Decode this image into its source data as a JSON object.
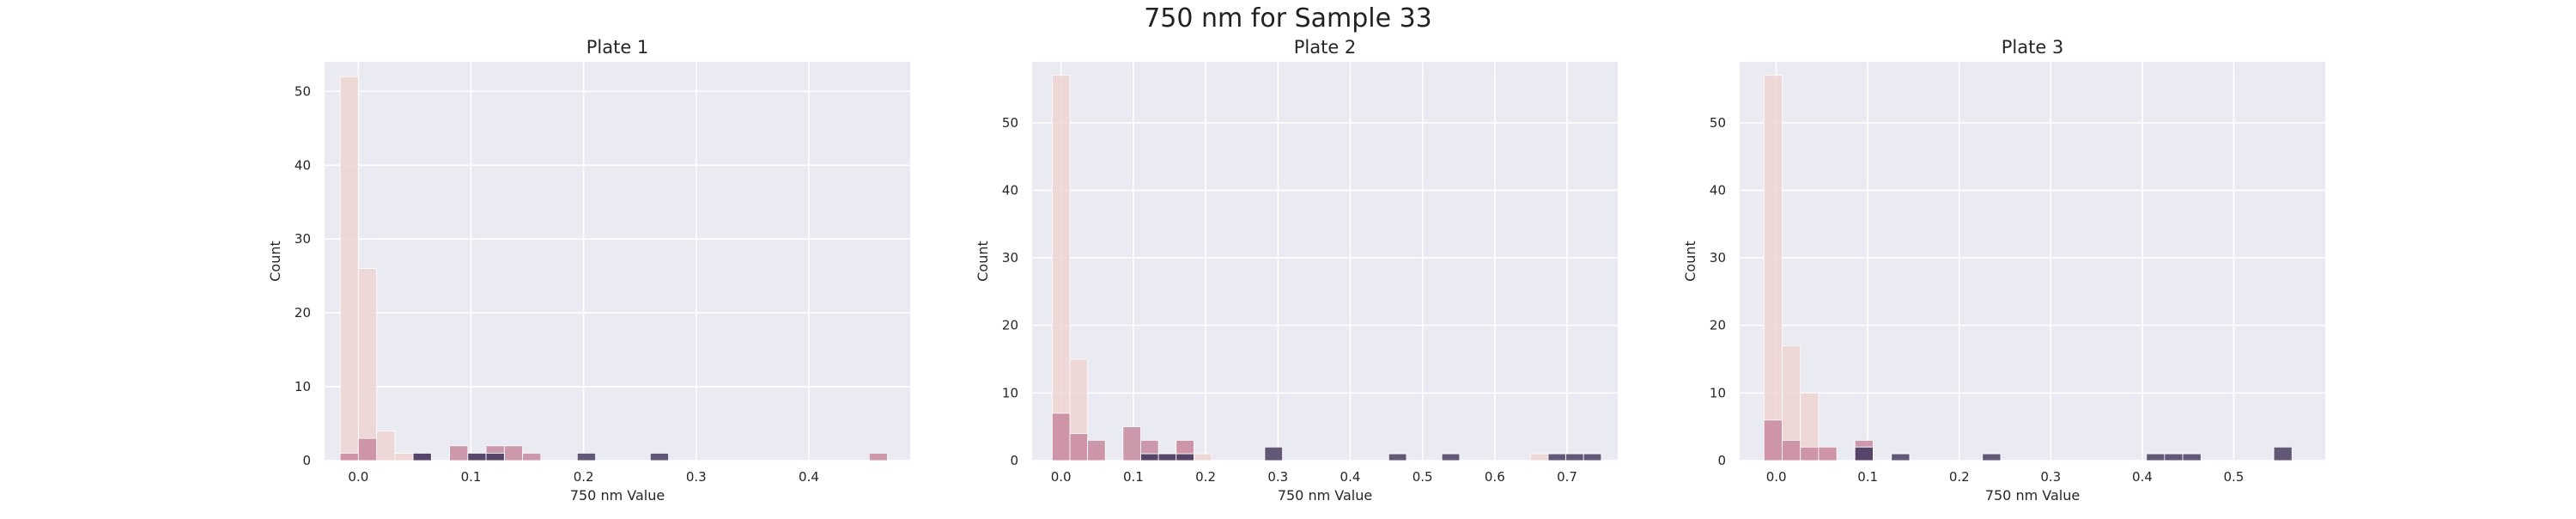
{
  "figure": {
    "title": "750 nm for Sample 33"
  },
  "colors": {
    "background": "#eaeaf2",
    "grid": "#ffffff",
    "palette": [
      "#eed3d2",
      "#c7899f",
      "#99648a",
      "#4b3d63"
    ]
  },
  "chart_data": [
    {
      "type": "bar",
      "title": "Plate 1",
      "xlabel": "750 nm Value",
      "ylabel": "Count",
      "xlim": [
        -0.03,
        0.49
      ],
      "ylim": [
        0,
        54
      ],
      "xticks": [
        0.0,
        0.1,
        0.2,
        0.3,
        0.4
      ],
      "xtick_labels": [
        "0.0",
        "0.1",
        "0.2",
        "0.3",
        "0.4"
      ],
      "yticks": [
        0,
        10,
        20,
        30,
        40,
        50
      ],
      "ytick_labels": [
        "0",
        "10",
        "20",
        "30",
        "40",
        "50"
      ],
      "bin_width": 0.0162,
      "grid": true,
      "series": [
        {
          "values": [
            [
              -0.0081,
              52
            ],
            [
              0.0081,
              26
            ],
            [
              0.0243,
              4
            ],
            [
              0.0405,
              1
            ],
            [
              0.0567,
              1
            ]
          ]
        },
        {
          "values": [
            [
              -0.0081,
              1
            ],
            [
              0.0081,
              3
            ],
            [
              0.0891,
              2
            ],
            [
              0.1215,
              2
            ],
            [
              0.1377,
              2
            ],
            [
              0.1539,
              1
            ],
            [
              0.4617,
              1
            ]
          ]
        },
        {
          "values": [
            [
              0.0567,
              1
            ],
            [
              0.1053,
              1
            ],
            [
              0.1215,
              1
            ]
          ]
        },
        {
          "values": [
            [
              0.0567,
              1
            ],
            [
              0.1053,
              1
            ],
            [
              0.1215,
              1
            ],
            [
              0.2025,
              1
            ],
            [
              0.2673,
              1
            ]
          ]
        }
      ]
    },
    {
      "type": "bar",
      "title": "Plate 2",
      "xlabel": "750 nm Value",
      "ylabel": "Count",
      "xlim": [
        -0.04,
        0.77
      ],
      "ylim": [
        0,
        59
      ],
      "xticks": [
        0.0,
        0.1,
        0.2,
        0.3,
        0.4,
        0.5,
        0.6,
        0.7
      ],
      "xtick_labels": [
        "0.0",
        "0.1",
        "0.2",
        "0.3",
        "0.4",
        "0.5",
        "0.6",
        "0.7"
      ],
      "yticks": [
        0,
        10,
        20,
        30,
        40,
        50
      ],
      "ytick_labels": [
        "0",
        "10",
        "20",
        "30",
        "40",
        "50"
      ],
      "bin_width": 0.0245,
      "grid": true,
      "series": [
        {
          "values": [
            [
              0.0,
              57
            ],
            [
              0.0245,
              15
            ],
            [
              0.049,
              2
            ],
            [
              0.1225,
              1
            ],
            [
              0.1715,
              3
            ],
            [
              0.196,
              1
            ],
            [
              0.6615,
              1
            ]
          ]
        },
        {
          "values": [
            [
              0.0,
              7
            ],
            [
              0.0245,
              4
            ],
            [
              0.049,
              3
            ],
            [
              0.098,
              5
            ],
            [
              0.1225,
              3
            ],
            [
              0.1715,
              3
            ]
          ]
        },
        {
          "values": [
            [
              0.1225,
              1
            ],
            [
              0.147,
              1
            ],
            [
              0.1715,
              1
            ]
          ]
        },
        {
          "values": [
            [
              0.1225,
              1
            ],
            [
              0.147,
              1
            ],
            [
              0.1715,
              1
            ],
            [
              0.294,
              2
            ],
            [
              0.4655,
              1
            ],
            [
              0.539,
              1
            ],
            [
              0.686,
              1
            ],
            [
              0.7105,
              1
            ],
            [
              0.735,
              1
            ]
          ]
        }
      ]
    },
    {
      "type": "bar",
      "title": "Plate 3",
      "xlabel": "750 nm Value",
      "ylabel": "Count",
      "xlim": [
        -0.04,
        0.6
      ],
      "ylim": [
        0,
        59
      ],
      "xticks": [
        0.0,
        0.1,
        0.2,
        0.3,
        0.4,
        0.5
      ],
      "xtick_labels": [
        "0.0",
        "0.1",
        "0.2",
        "0.3",
        "0.4",
        "0.5"
      ],
      "yticks": [
        0,
        10,
        20,
        30,
        40,
        50
      ],
      "ytick_labels": [
        "0",
        "10",
        "20",
        "30",
        "40",
        "50"
      ],
      "bin_width": 0.0199,
      "grid": true,
      "series": [
        {
          "values": [
            [
              -0.0035,
              57
            ],
            [
              0.0164,
              17
            ],
            [
              0.0363,
              10
            ],
            [
              0.0562,
              2
            ]
          ]
        },
        {
          "values": [
            [
              -0.0035,
              6
            ],
            [
              0.0164,
              3
            ],
            [
              0.0363,
              2
            ],
            [
              0.0562,
              2
            ],
            [
              0.0959,
              3
            ]
          ]
        },
        {
          "values": [
            [
              0.0959,
              2
            ]
          ]
        },
        {
          "values": [
            [
              0.0959,
              2
            ],
            [
              0.1358,
              1
            ],
            [
              0.2353,
              1
            ],
            [
              0.4145,
              1
            ],
            [
              0.4343,
              1
            ],
            [
              0.4542,
              1
            ],
            [
              0.5537,
              2
            ]
          ]
        }
      ]
    }
  ]
}
